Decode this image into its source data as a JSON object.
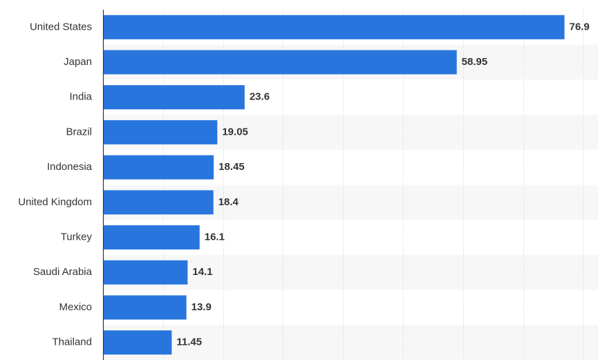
{
  "chart_data": {
    "type": "bar",
    "orientation": "horizontal",
    "categories": [
      "United States",
      "Japan",
      "India",
      "Brazil",
      "Indonesia",
      "United Kingdom",
      "Turkey",
      "Saudi Arabia",
      "Mexico",
      "Thailand"
    ],
    "values": [
      76.9,
      58.95,
      23.6,
      19.05,
      18.45,
      18.4,
      16.1,
      14.1,
      13.9,
      11.45
    ],
    "value_labels": [
      "76.9",
      "58.95",
      "23.6",
      "19.05",
      "18.45",
      "18.4",
      "16.1",
      "14.1",
      "13.9",
      "11.45"
    ],
    "title": "",
    "xlabel": "",
    "ylabel": "",
    "xlim": [
      0,
      80
    ],
    "grid": true,
    "legend": "none",
    "colors": {
      "bar": "#2876dd",
      "alt_row": "#f7f7f7",
      "axis": "#333333",
      "grid": "#d0d0d0",
      "text": "#333333"
    }
  }
}
